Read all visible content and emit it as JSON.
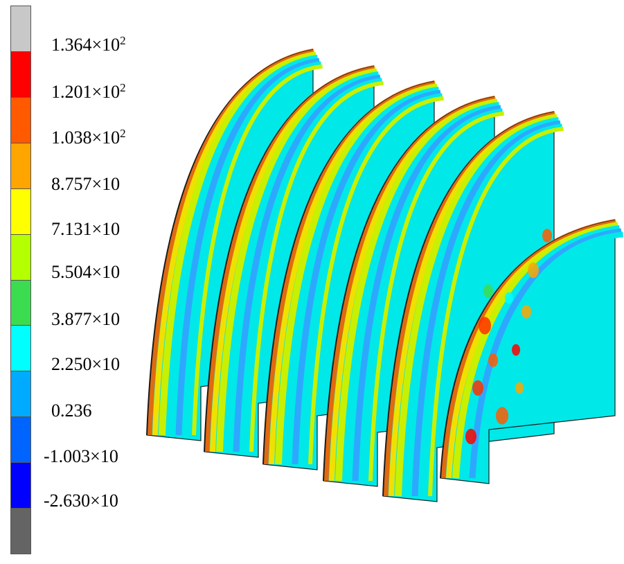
{
  "legend": {
    "colors": [
      "#c8c8c8",
      "#ff0000",
      "#ff5a00",
      "#ffa500",
      "#ffff00",
      "#b4ff00",
      "#3cdc50",
      "#00ffff",
      "#00aaff",
      "#0064ff",
      "#0000ff",
      "#646464"
    ],
    "labels": [
      {
        "base": "1.364×10",
        "exp": "2"
      },
      {
        "base": "1.201×10",
        "exp": "2"
      },
      {
        "base": "1.038×10",
        "exp": "2"
      },
      {
        "base": "8.757×10",
        "exp": ""
      },
      {
        "base": "7.131×10",
        "exp": ""
      },
      {
        "base": "5.504×10",
        "exp": ""
      },
      {
        "base": "3.877×10",
        "exp": ""
      },
      {
        "base": "2.250×10",
        "exp": ""
      },
      {
        "base": "0.236",
        "exp": ""
      },
      {
        "base": "-1.003×10",
        "exp": ""
      },
      {
        "base": "-2.630×10",
        "exp": ""
      }
    ]
  },
  "model": {
    "description_colors": {
      "edge": "#e06a10",
      "body": "#00e8e8",
      "band_a": "#c8f000",
      "band_b": "#2ea8ff",
      "band_c": "#f0e000",
      "outline": "#1a1a1a"
    },
    "plate_count": 6
  }
}
